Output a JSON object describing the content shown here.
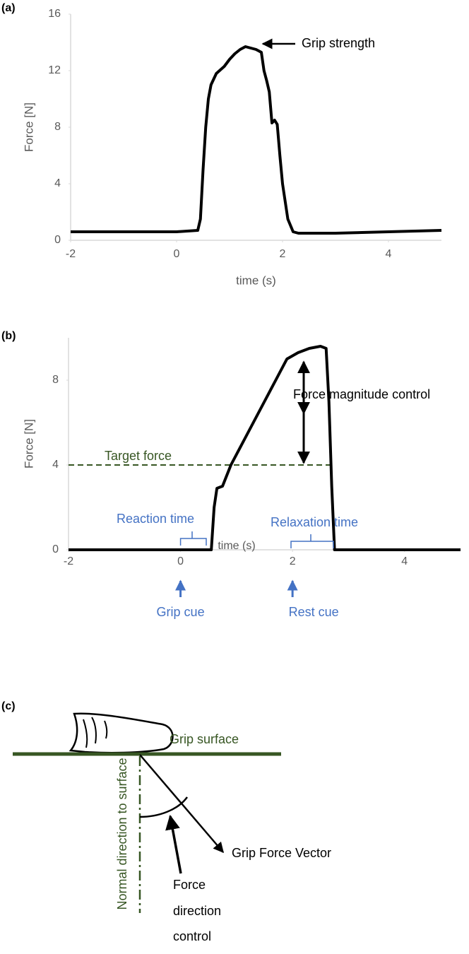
{
  "chart_data": [
    {
      "type": "line",
      "panel": "(a)",
      "ylabel": "Force [N]",
      "xlabel": "time (s)",
      "x": [
        -2,
        -1,
        0,
        0.4,
        0.45,
        0.5,
        0.55,
        0.6,
        0.65,
        0.75,
        0.9,
        1.0,
        1.1,
        1.2,
        1.3,
        1.4,
        1.5,
        1.6,
        1.65,
        1.7,
        1.75,
        1.8,
        1.85,
        1.9,
        1.95,
        2.0,
        2.1,
        2.2,
        2.3,
        2.5,
        3,
        4,
        5
      ],
      "values": [
        0.6,
        0.6,
        0.6,
        0.7,
        1.5,
        5,
        8,
        10,
        11,
        11.8,
        12.3,
        12.8,
        13.2,
        13.5,
        13.7,
        13.6,
        13.5,
        13.3,
        12,
        11.3,
        10.5,
        8.3,
        8.5,
        8.2,
        6,
        4,
        1.5,
        0.6,
        0.5,
        0.5,
        0.5,
        0.6,
        0.7
      ],
      "color": "#000000",
      "xlim": [
        -2,
        5
      ],
      "ylim": [
        0,
        16
      ],
      "xticks": [
        -2,
        0,
        2,
        4
      ],
      "yticks": [
        0,
        4,
        8,
        12,
        16
      ],
      "annotation": "Grip strength"
    },
    {
      "type": "line",
      "panel": "(b)",
      "ylabel": "Force [N]",
      "xlabel": "time (s)",
      "x": [
        -2,
        0,
        0.55,
        0.6,
        0.65,
        0.75,
        0.9,
        1.1,
        1.3,
        1.5,
        1.7,
        1.9,
        2.1,
        2.3,
        2.5,
        2.6,
        2.65,
        2.7,
        2.75,
        3,
        5
      ],
      "values": [
        0,
        0,
        0,
        2,
        2.9,
        3.0,
        4,
        5,
        6,
        7,
        8,
        9,
        9.3,
        9.5,
        9.6,
        9.5,
        7,
        3,
        0,
        0,
        0
      ],
      "color": "#000000",
      "xlim": [
        -2,
        5
      ],
      "ylim": [
        0,
        10
      ],
      "xticks": [
        -2,
        0,
        2,
        4
      ],
      "yticks": [
        0,
        4,
        8
      ],
      "target": {
        "label": "Target force",
        "value": 4,
        "color": "#375623"
      },
      "annotations": {
        "reaction": "Reaction time",
        "relaxation": "Relaxation time",
        "magnitude": "Force magnitude control",
        "grip_cue": "Grip cue",
        "rest_cue": "Rest cue"
      }
    }
  ],
  "diagram": {
    "label": "(c)",
    "surface": "Grip surface",
    "normal": "Normal direction to surface",
    "vector": "Grip Force Vector",
    "control": [
      "Force",
      "direction",
      "control"
    ]
  }
}
